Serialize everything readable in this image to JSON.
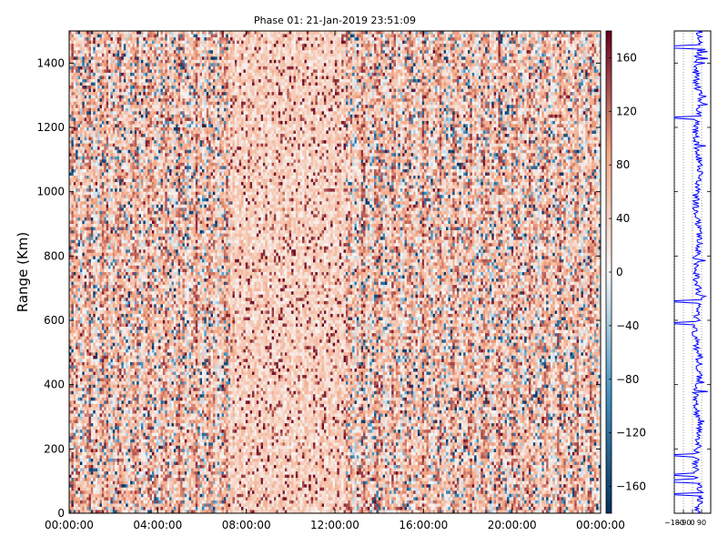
{
  "chart_data": [
    {
      "type": "heatmap",
      "title": "Phase 01: 21-Jan-2019 23:51:09",
      "xlabel": "",
      "ylabel": "Range (Km)",
      "x_ticks": [
        "00:00:00",
        "04:00:00",
        "08:00:00",
        "12:00:00",
        "16:00:00",
        "20:00:00",
        "00:00:00"
      ],
      "x_range_hours": [
        0,
        24
      ],
      "y_ticks": [
        0,
        200,
        400,
        600,
        800,
        1000,
        1200,
        1400
      ],
      "ylim": [
        0,
        1500
      ],
      "colorbar": {
        "colormap": "RdBu_r",
        "range": [
          -180,
          180
        ],
        "ticks": [
          -160,
          -120,
          -80,
          -40,
          0,
          40,
          80,
          120,
          160
        ],
        "colors": {
          "low": "#053061",
          "low_mid": "#4393c3",
          "neutral": "#f7f7f7",
          "high_mid": "#f4a582",
          "high": "#67001f"
        }
      },
      "value_summary": "mostly positive phase values between 0 and 180 degrees with scattered negative cells; smoother low-value band near 08:00-12:00"
    },
    {
      "type": "line",
      "orientation": "vertical",
      "x_ticks": [
        "-180",
        "-90",
        "0",
        "90"
      ],
      "xlim": [
        -180,
        180
      ],
      "ylim": [
        0,
        1500
      ],
      "grid": "vertical dotted",
      "series_color": "#0000ff",
      "value_summary": "phase profile versus range, centred near 50 with spikes to about -180 near 60, 100, 180, 590, 660, 1230 and 1450 km"
    }
  ]
}
